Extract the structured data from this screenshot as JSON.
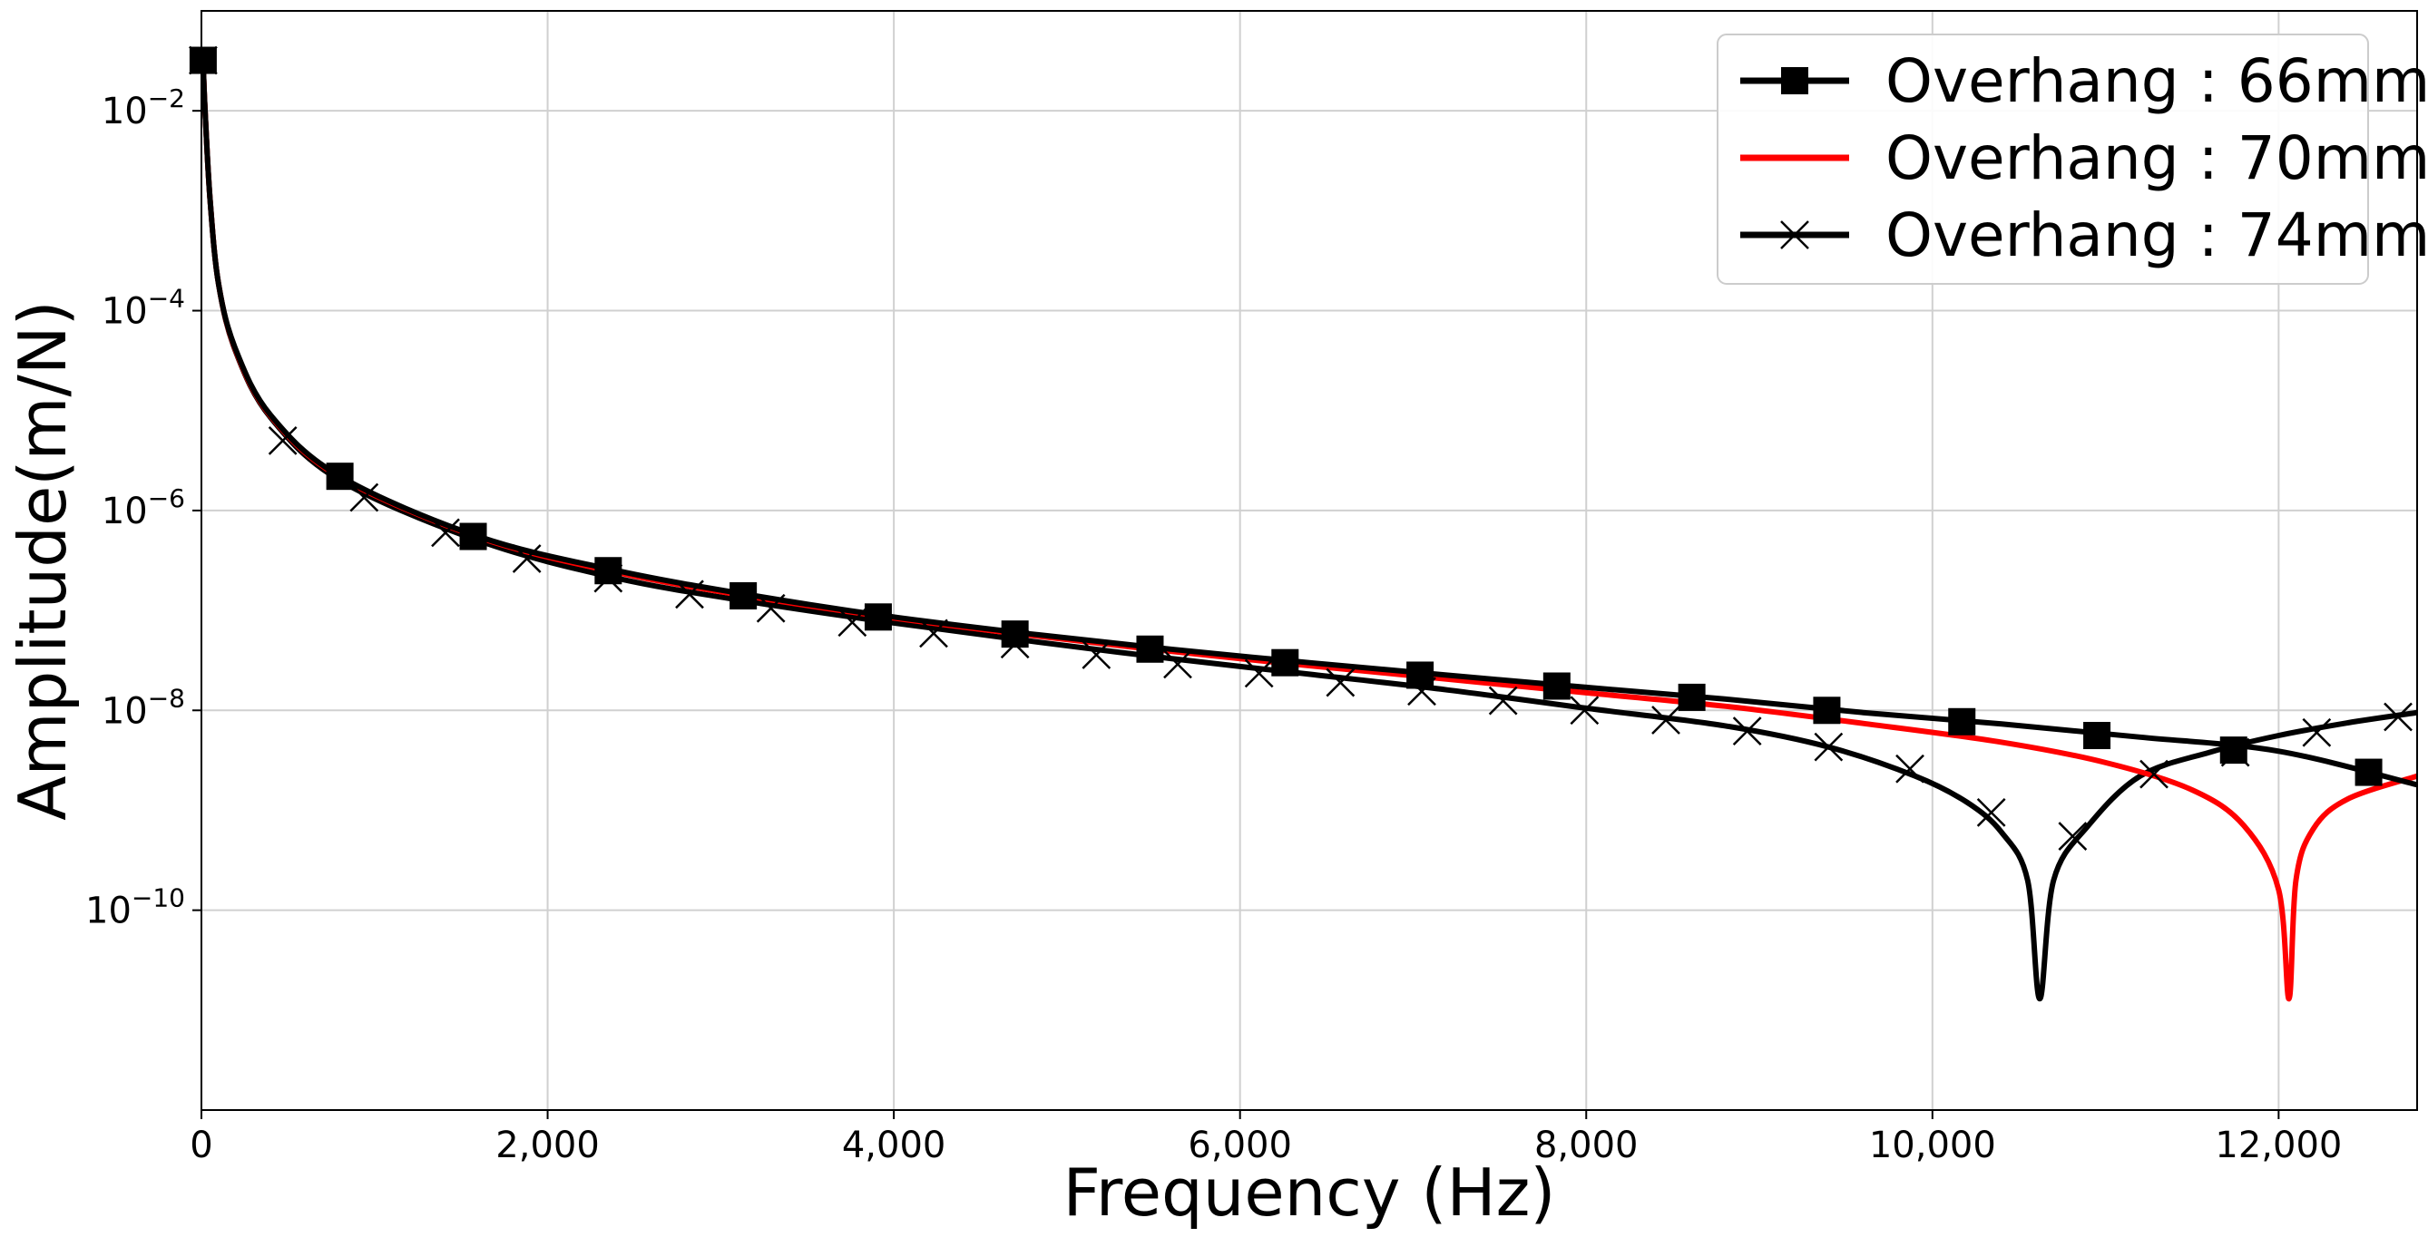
{
  "chart_data": {
    "type": "line",
    "title": "",
    "xlabel": "Frequency (Hz)",
    "ylabel": "Amplitude(m/N)",
    "xlim": [
      0,
      12800
    ],
    "ylim": [
      1e-12,
      0.1
    ],
    "yscale": "log",
    "grid": true,
    "legend_position": "top-right",
    "x_ticks": [
      {
        "value": 0,
        "label": "0"
      },
      {
        "value": 2000,
        "label": "2,000"
      },
      {
        "value": 4000,
        "label": "4,000"
      },
      {
        "value": 6000,
        "label": "6,000"
      },
      {
        "value": 8000,
        "label": "8,000"
      },
      {
        "value": 10000,
        "label": "10,000"
      },
      {
        "value": 12000,
        "label": "12,000"
      }
    ],
    "y_ticks": [
      {
        "value": 0.01,
        "base": "10",
        "exp": "−2"
      },
      {
        "value": 0.0001,
        "base": "10",
        "exp": "−4"
      },
      {
        "value": 1e-06,
        "base": "10",
        "exp": "−6"
      },
      {
        "value": 1e-08,
        "base": "10",
        "exp": "−8"
      },
      {
        "value": 1e-10,
        "base": "10",
        "exp": "−10"
      }
    ],
    "series": [
      {
        "name": "Overhang : 66mm",
        "color": "#000000",
        "marker": "square",
        "x": [
          10,
          20,
          50,
          100,
          200,
          400,
          800,
          1600,
          2400,
          3200,
          4000,
          4800,
          5600,
          6400,
          7200,
          8000,
          8800,
          9600,
          10400,
          11200,
          12000,
          12800
        ],
        "y": [
          0.032,
          0.011,
          0.0013,
          0.00018,
          4e-05,
          9e-06,
          2.2e-06,
          5.5e-07,
          2.5e-07,
          1.4e-07,
          8.6e-08,
          5.8e-08,
          4.1e-08,
          3e-08,
          2.25e-08,
          1.7e-08,
          1.3e-08,
          9.5e-09,
          7.3e-09,
          5.4e-09,
          3.9e-09,
          1.8e-09
        ],
        "marker_x": [
          10,
          800,
          1570,
          2350,
          3130,
          3910,
          4700,
          5480,
          6260,
          7040,
          7830,
          8610,
          9390,
          10170,
          10950,
          11740,
          12520
        ],
        "marker_y": [
          0.032,
          2.2e-06,
          5.5e-07,
          2.5e-07,
          1.4e-07,
          8.6e-08,
          5.8e-08,
          4.1e-08,
          3e-08,
          2.25e-08,
          1.75e-08,
          1.35e-08,
          1e-08,
          7.7e-09,
          5.6e-09,
          4e-09,
          2.4e-09
        ]
      },
      {
        "name": "Overhang : 70mm",
        "color": "#ff0000",
        "marker": "none",
        "x": [
          10,
          20,
          50,
          100,
          200,
          400,
          800,
          1600,
          2400,
          3200,
          4000,
          4800,
          5600,
          6400,
          7200,
          8000,
          8800,
          9600,
          10400,
          11000,
          11500,
          11800,
          12000,
          12060,
          12100,
          12200,
          12400,
          12800
        ],
        "y": [
          0.032,
          0.011,
          0.0013,
          0.00018,
          3.9e-05,
          8.8e-06,
          2.15e-06,
          5.4e-07,
          2.4e-07,
          1.35e-07,
          8.4e-08,
          5.6e-08,
          3.9e-08,
          2.8e-08,
          2.05e-08,
          1.5e-08,
          1.1e-08,
          7.4e-09,
          4.8e-09,
          3e-09,
          1.6e-09,
          7e-10,
          1.6e-10,
          1.3e-11,
          2e-10,
          6.5e-10,
          1.3e-09,
          2.2e-09
        ]
      },
      {
        "name": "Overhang : 74mm",
        "color": "#000000",
        "marker": "x",
        "x": [
          10,
          20,
          50,
          100,
          200,
          400,
          800,
          1600,
          2400,
          3200,
          4000,
          4800,
          5600,
          6400,
          7200,
          8000,
          8800,
          9400,
          9900,
          10200,
          10400,
          10550,
          10620,
          10700,
          10900,
          11200,
          11600,
          12000,
          12400,
          12800
        ],
        "y": [
          0.032,
          0.011,
          0.0013,
          0.00018,
          3.8e-05,
          8.5e-06,
          2e-06,
          5e-07,
          2.1e-07,
          1.2e-07,
          7.5e-08,
          4.9e-08,
          3.3e-08,
          2.3e-08,
          1.6e-08,
          1.05e-08,
          7e-09,
          4.3e-09,
          2.2e-09,
          1.2e-09,
          6e-10,
          2e-10,
          1.3e-11,
          2e-10,
          7e-10,
          2.2e-09,
          3.8e-09,
          5.6e-09,
          7.5e-09,
          9.5e-09
        ],
        "marker_x": [
          10,
          470,
          940,
          1410,
          1880,
          2350,
          2820,
          3290,
          3760,
          4230,
          4700,
          5170,
          5640,
          6110,
          6580,
          7050,
          7520,
          7990,
          8460,
          8930,
          9400,
          9870,
          10340,
          10810,
          11280,
          11750,
          12220,
          12690
        ],
        "marker_y": [
          0.032,
          5e-06,
          1.35e-06,
          6e-07,
          3.3e-07,
          2.1e-07,
          1.45e-07,
          1.05e-07,
          7.6e-08,
          5.9e-08,
          4.6e-08,
          3.6e-08,
          2.9e-08,
          2.35e-08,
          1.9e-08,
          1.55e-08,
          1.25e-08,
          1e-08,
          8e-09,
          6.2e-09,
          4.3e-09,
          2.6e-09,
          9.5e-10,
          5.5e-10,
          2.3e-09,
          3.8e-09,
          6e-09,
          8.6e-09
        ]
      }
    ]
  }
}
